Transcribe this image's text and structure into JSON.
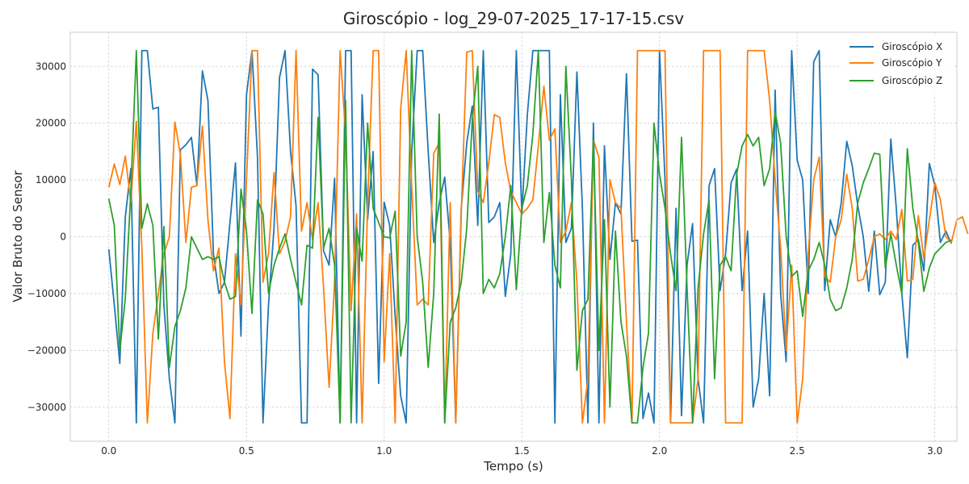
{
  "chart_data": {
    "type": "line",
    "title": "Giroscópio - log_29-07-2025_17-17-15.csv",
    "xlabel": "Tempo (s)",
    "ylabel": "Valor Bruto do Sensor",
    "xlim": [
      -0.14,
      3.08
    ],
    "ylim": [
      -36000,
      36000
    ],
    "xticks": [
      0.0,
      0.5,
      1.0,
      1.5,
      2.0,
      2.5,
      3.0
    ],
    "xtick_labels": [
      "0.0",
      "0.5",
      "1.0",
      "1.5",
      "2.0",
      "2.5",
      "3.0"
    ],
    "yticks": [
      -30000,
      -20000,
      -10000,
      0,
      10000,
      20000,
      30000
    ],
    "ytick_labels": [
      "−30000",
      "−20000",
      "−10000",
      "0",
      "10000",
      "20000",
      "30000"
    ],
    "grid": true,
    "legend_position": "top-right",
    "x_start": 0.0,
    "x_step": 0.02,
    "series": [
      {
        "name": "Giroscópio X",
        "color": "#1f77b4",
        "values": [
          -2200,
          -12000,
          -22300,
          3500,
          12000,
          -32768,
          32767,
          32767,
          22500,
          22800,
          -12000,
          -25000,
          -32768,
          15300,
          16200,
          17500,
          9000,
          29200,
          24000,
          -3000,
          -10000,
          -8000,
          2500,
          13000,
          -17500,
          25000,
          32767,
          14000,
          -32768,
          -12000,
          1500,
          28000,
          32767,
          15000,
          5500,
          -32768,
          -32768,
          29500,
          28500,
          -2500,
          -5000,
          10300,
          -32768,
          32767,
          32767,
          -32768,
          25000,
          3000,
          15000,
          -25800,
          6100,
          2000,
          -14000,
          -28000,
          -32768,
          15000,
          32767,
          32767,
          15000,
          -1000,
          6000,
          10500,
          -1000,
          -32768,
          5000,
          16500,
          23000,
          2000,
          32767,
          2500,
          3500,
          6000,
          -10500,
          -3000,
          32767,
          4000,
          21500,
          32767,
          32767,
          32767,
          32767,
          -32768,
          25000,
          -1000,
          1500,
          29000,
          5000,
          -32768,
          20000,
          -32768,
          16000,
          -4000,
          6000,
          4000,
          28700,
          -800,
          -600,
          -32000,
          -27500,
          -32768,
          32767,
          10000,
          -32768,
          5000,
          -31500,
          -5000,
          2300,
          -25000,
          -32768,
          9000,
          12000,
          -9500,
          -3000,
          9500,
          11900,
          -9500,
          1000,
          -30000,
          -25000,
          -10000,
          -28000,
          25800,
          -10000,
          -22000,
          32767,
          13500,
          10000,
          -10000,
          30800,
          32767,
          -9500,
          3000,
          0,
          6000,
          16800,
          12500,
          5500,
          0,
          -9600,
          1000,
          -10200,
          -8000,
          17200,
          5000,
          -10000,
          -21300,
          -1500,
          -500,
          -6000,
          12900,
          9000,
          -1000,
          1000,
          -1200
        ]
      },
      {
        "name": "Giroscópio Y",
        "color": "#ff7f0e",
        "values": [
          8700,
          12800,
          9200,
          14200,
          6000,
          20300,
          -2000,
          -32768,
          -17000,
          -10000,
          -3000,
          0,
          20200,
          14400,
          -1000,
          8700,
          9000,
          19500,
          3000,
          -6000,
          -2000,
          -22000,
          -32000,
          -3000,
          -12000,
          10000,
          32767,
          32767,
          -8000,
          -3000,
          11300,
          -3000,
          -800,
          3500,
          32767,
          1000,
          6000,
          -500,
          6000,
          -9000,
          -26500,
          -8000,
          32767,
          18000,
          -13000,
          4000,
          -32768,
          6000,
          32767,
          32767,
          -22000,
          -3000,
          -32768,
          22500,
          32767,
          9000,
          -12000,
          -11000,
          -12000,
          14700,
          16500,
          -32768,
          6000,
          -32768,
          4000,
          32500,
          32767,
          8000,
          6000,
          13000,
          21500,
          21000,
          13000,
          8000,
          6000,
          4000,
          5000,
          6500,
          16000,
          26500,
          17000,
          19000,
          -1000,
          1000,
          6000,
          -8000,
          -32768,
          -25000,
          17000,
          14000,
          -32768,
          10000,
          6000,
          5000,
          -15000,
          -32768,
          32767,
          32767,
          32767,
          32767,
          32767,
          32767,
          -32768,
          -32768,
          -32768,
          -32768,
          -32768,
          -25000,
          32767,
          32767,
          32767,
          32767,
          -32768,
          -32768,
          -32768,
          -32768,
          32767,
          32767,
          32767,
          32767,
          24000,
          10000,
          -2000,
          -20000,
          -5000,
          -32768,
          -25000,
          -3000,
          10000,
          14000,
          -7000,
          -8000,
          0,
          3000,
          11000,
          5000,
          -7800,
          -7500,
          -4000,
          0,
          500,
          -500,
          1000,
          -500,
          4800,
          -7800,
          -7500,
          3700,
          -3800,
          3000,
          9500,
          6500,
          0,
          -1000,
          3000,
          3500,
          500
        ]
      },
      {
        "name": "Giroscópio Z",
        "color": "#2ca02c",
        "values": [
          6700,
          2000,
          -20000,
          -10800,
          8000,
          32767,
          1500,
          5800,
          2000,
          -18000,
          1800,
          -23000,
          -15800,
          -13000,
          -9000,
          0,
          -2000,
          -4000,
          -3500,
          -4000,
          -3500,
          -8000,
          -11000,
          -10500,
          8400,
          1000,
          -13500,
          6500,
          4000,
          -10000,
          -5000,
          -2000,
          500,
          -4000,
          -8000,
          -12000,
          -1500,
          -2000,
          21000,
          -2000,
          1500,
          -5000,
          -32768,
          24000,
          -32768,
          1500,
          -4300,
          20000,
          5000,
          2500,
          0,
          -200,
          4500,
          -21000,
          -15000,
          32767,
          0,
          -8000,
          -23000,
          -10000,
          21600,
          -32768,
          -15000,
          -12500,
          -8000,
          1500,
          20500,
          30000,
          -10000,
          -7500,
          -9000,
          -6500,
          0,
          9000,
          -9300,
          5000,
          9000,
          18000,
          32767,
          -1000,
          7800,
          -5000,
          -9000,
          30000,
          10000,
          -23500,
          -13000,
          -11000,
          17000,
          -20000,
          3000,
          -30000,
          1000,
          -15000,
          -21000,
          -32768,
          -32768,
          -23000,
          -17000,
          20000,
          11000,
          5000,
          -3000,
          -9500,
          17500,
          -9000,
          -32768,
          -9000,
          500,
          6500,
          -25000,
          -5000,
          -3500,
          -6000,
          11000,
          16000,
          18000,
          16000,
          17500,
          9000,
          12000,
          22000,
          16500,
          0,
          -7000,
          -6000,
          -14000,
          -6000,
          -4000,
          -1000,
          -5000,
          -11000,
          -13000,
          -12500,
          -9000,
          -4000,
          6000,
          9500,
          12000,
          14700,
          14500,
          -5500,
          500,
          -5000,
          -10000,
          15500,
          5000,
          -1000,
          -9600,
          -5500,
          -3000,
          -2000,
          -1000,
          -600
        ]
      }
    ]
  }
}
